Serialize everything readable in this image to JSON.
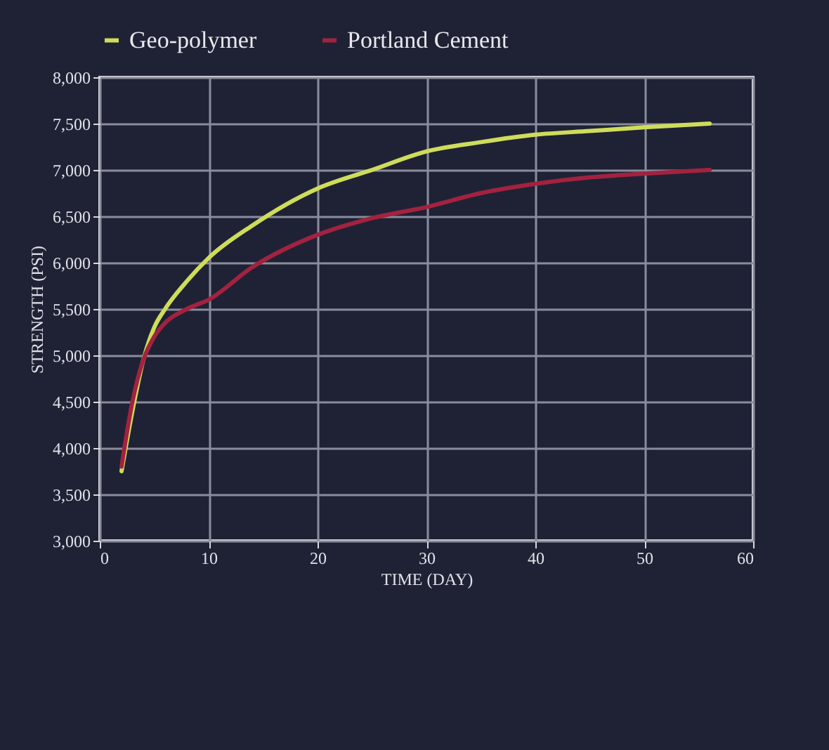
{
  "chart_data": {
    "type": "line",
    "xlabel": "TIME (DAY)",
    "ylabel": "STRENGTH (PSI)",
    "series": [
      {
        "name": "Geo-polymer",
        "color": "#cfdc5a",
        "x": [
          2,
          3,
          4,
          5,
          6,
          8,
          10,
          14,
          20,
          25,
          30,
          35,
          40,
          45,
          50,
          56
        ],
        "values": [
          3750,
          4400,
          4950,
          5300,
          5500,
          5800,
          6050,
          6400,
          6800,
          7000,
          7200,
          7300,
          7380,
          7420,
          7460,
          7500
        ]
      },
      {
        "name": "Portland Cement",
        "color": "#a3223f",
        "x": [
          2,
          3,
          4,
          5,
          6,
          8,
          10,
          14,
          20,
          25,
          30,
          35,
          40,
          45,
          50,
          56
        ],
        "values": [
          3800,
          4500,
          4950,
          5200,
          5350,
          5500,
          5600,
          5950,
          6300,
          6480,
          6600,
          6750,
          6850,
          6920,
          6960,
          7000
        ]
      }
    ],
    "xlim": [
      0,
      60
    ],
    "xticks": [
      0,
      10,
      20,
      30,
      40,
      50,
      60
    ],
    "ylim": [
      3000,
      8000
    ],
    "yticks": [
      {
        "value": 3000,
        "label": "3,000"
      },
      {
        "value": 3500,
        "label": "3,500"
      },
      {
        "value": 4000,
        "label": "4,000"
      },
      {
        "value": 4500,
        "label": "4,500"
      },
      {
        "value": 5000,
        "label": "5,000"
      },
      {
        "value": 5500,
        "label": "5,500"
      },
      {
        "value": 6000,
        "label": "6,000"
      },
      {
        "value": 6500,
        "label": "6,500"
      },
      {
        "value": 7000,
        "label": "7,000"
      },
      {
        "value": 7500,
        "label": "7,500"
      },
      {
        "value": 8000,
        "label": "8,000"
      }
    ],
    "grid": true,
    "legend": "top",
    "marker": "none",
    "line_style": "solid"
  }
}
